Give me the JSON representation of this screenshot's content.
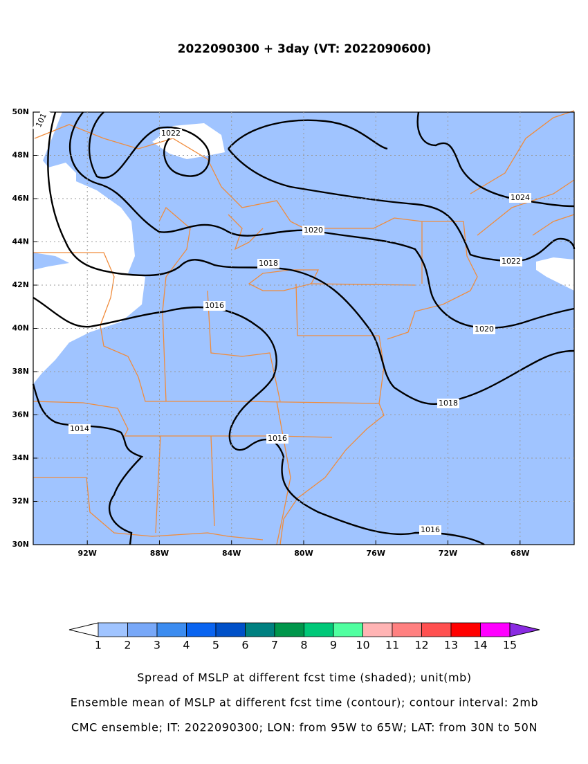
{
  "title": "2022090300 + 3day (VT: 2022090600)",
  "map": {
    "lat_labels": [
      "50N",
      "48N",
      "46N",
      "44N",
      "42N",
      "40N",
      "38N",
      "36N",
      "34N",
      "32N",
      "30N"
    ],
    "lon_labels": [
      "92W",
      "88W",
      "84W",
      "80W",
      "76W",
      "72W",
      "68W"
    ],
    "contour_labels": [
      "1022",
      "1020",
      "1018",
      "1016",
      "1014",
      "1016",
      "1024",
      "1022",
      "1020",
      "1018",
      "1016",
      "101"
    ]
  },
  "colorbar": {
    "colors": [
      "#ffffff",
      "#a0c4ff",
      "#78a8f8",
      "#3c8cf0",
      "#0a64f0",
      "#0050c8",
      "#008080",
      "#00964b",
      "#00c878",
      "#50ffa0",
      "#ffb4b4",
      "#ff8080",
      "#ff5050",
      "#ff0000",
      "#ff00ff",
      "#8a2be2"
    ],
    "labels": [
      1,
      2,
      3,
      4,
      5,
      6,
      7,
      8,
      9,
      10,
      11,
      12,
      13,
      14,
      15
    ]
  },
  "captions": [
    "Spread of MSLP at different fcst time (shaded); unit(mb)",
    "Ensemble mean of MSLP at different fcst time (contour); contour interval: 2mb",
    "CMC ensemble; IT: 2022090300; LON: from 95W to 65W; LAT: from 30N to 50N"
  ]
}
